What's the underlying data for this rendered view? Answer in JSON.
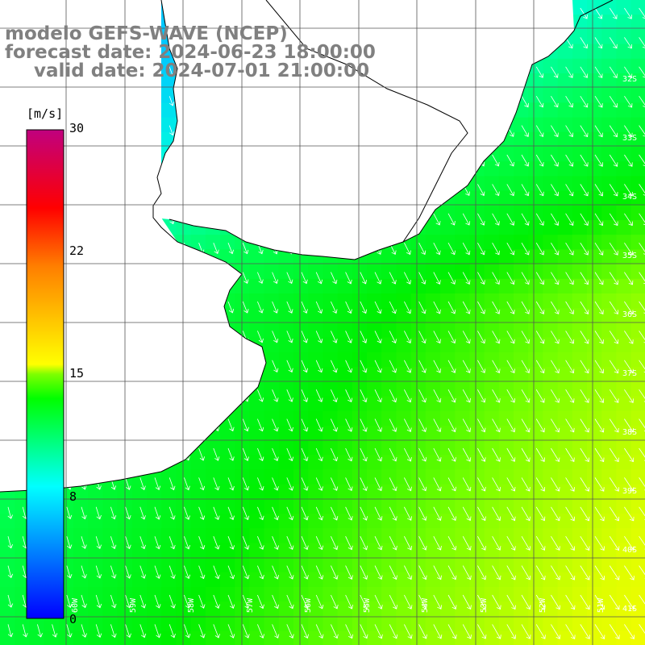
{
  "title": {
    "line1": "modelo GEFS-WAVE (NCEP)",
    "line2": "forecast date: 2024-06-23 18:00:00",
    "line3": "valid date: 2024-07-01 21:00:00"
  },
  "colorbar": {
    "unit": "[m/s]",
    "ticks": [
      "30",
      "22",
      "15",
      "8",
      "0"
    ],
    "stops": [
      "#0000ff",
      "#00ffff",
      "#00ff00",
      "#ffff00",
      "#ff7f00",
      "#ff0000",
      "#c0007f"
    ]
  },
  "lat_labels": [
    "32S",
    "33S",
    "34S",
    "35S",
    "36S",
    "37S",
    "38S",
    "39S",
    "40S",
    "41S"
  ],
  "lon_labels": [
    "60W",
    "59W",
    "58W",
    "57W",
    "56W",
    "55W",
    "54W",
    "53W",
    "52W",
    "51W"
  ],
  "colors": {
    "land": "#ffffff",
    "grid": "#000000",
    "coast": "#000000",
    "arrow": "#ffffff"
  }
}
